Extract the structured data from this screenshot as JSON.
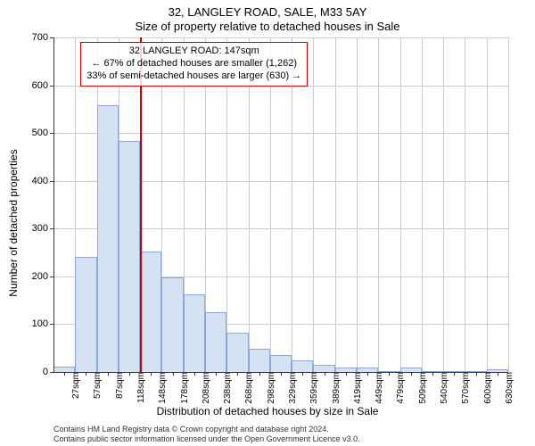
{
  "title_line1": "32, LANGLEY ROAD, SALE, M33 5AY",
  "title_line2": "Size of property relative to detached houses in Sale",
  "y_axis_title": "Number of detached properties",
  "x_axis_title": "Distribution of detached houses by size in Sale",
  "chart": {
    "type": "histogram",
    "background_color": "#ffffff",
    "grid_color": "#cccccc",
    "bar_fill": "#d4e2f4",
    "bar_stroke": "#8aa9d6",
    "bar_stroke_width": 1,
    "ylim": [
      0,
      700
    ],
    "yticks": [
      0,
      100,
      200,
      300,
      400,
      500,
      600,
      700
    ],
    "x_categories": [
      "27sqm",
      "57sqm",
      "87sqm",
      "118sqm",
      "148sqm",
      "178sqm",
      "208sqm",
      "238sqm",
      "268sqm",
      "298sqm",
      "329sqm",
      "359sqm",
      "389sqm",
      "419sqm",
      "449sqm",
      "479sqm",
      "509sqm",
      "540sqm",
      "570sqm",
      "600sqm",
      "630sqm"
    ],
    "values": [
      12,
      240,
      558,
      483,
      252,
      198,
      163,
      126,
      83,
      48,
      35,
      25,
      15,
      10,
      10,
      2,
      10,
      2,
      2,
      0,
      5
    ],
    "bar_gap_ratio": 0.0,
    "marker": {
      "position_index": 4,
      "color": "#cc0000",
      "width": 2
    },
    "annotation": {
      "lines": [
        "32 LANGLEY ROAD: 147sqm",
        "← 67% of detached houses are smaller (1,262)",
        "33% of semi-detached houses are larger (630) →"
      ],
      "border_color": "#cc0000",
      "border_width": 1,
      "top_y_value": 690,
      "left_x_index": 1
    },
    "label_fontsize": 11,
    "axis_fontsize": 12
  },
  "footer_line1": "Contains HM Land Registry data © Crown copyright and database right 2024.",
  "footer_line2": "Contains public sector information licensed under the Open Government Licence v3.0."
}
